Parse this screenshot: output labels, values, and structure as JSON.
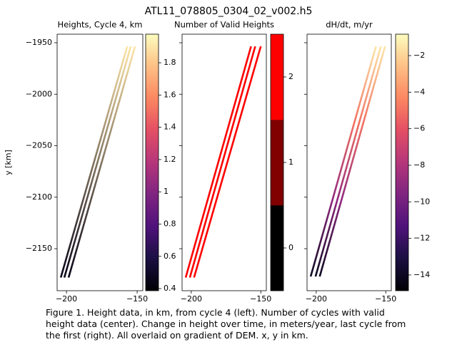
{
  "title": "ATL11_078805_0304_02_v002.h5",
  "caption": [
    "Figure 1. Height data, in km, from cycle 4 (left). Number of cycles with valid",
    "height data (center). Change in height over time, in meters/year, last cycle from",
    "the first (right). All overlaid on gradient of DEM. x, y in km."
  ],
  "chart_data": [
    {
      "type": "line",
      "title": "Heights, Cycle 4, km",
      "y_label": "y [km]",
      "cmap": "magma",
      "xlim": [
        -206.6,
        -146
      ],
      "xticks": [
        {
          "value": -200,
          "label": "−200"
        },
        {
          "value": -150,
          "label": "−150"
        }
      ],
      "ylim": [
        -2190.8,
        -1941.7
      ],
      "ytick_labels": true,
      "yticks": [
        {
          "value": -1950,
          "label": "−1950"
        },
        {
          "value": -2000,
          "label": "−2000"
        },
        {
          "value": -2050,
          "label": "−2050"
        },
        {
          "value": -2100,
          "label": "−2100"
        },
        {
          "value": -2150,
          "label": "−2150"
        }
      ],
      "clim": [
        0.387,
        1.977
      ],
      "cticks": [
        0.4,
        0.6,
        0.8,
        1.0,
        1.2,
        1.4,
        1.6,
        1.8
      ],
      "series": [
        {
          "x": [
            -204,
            -157
          ],
          "values": [
            -2178,
            -1953.5
          ],
          "c": [
            0.45,
            1.9
          ]
        },
        {
          "x": [
            -201.5,
            -154.5
          ],
          "values": [
            -2178,
            -1953.5
          ],
          "c": [
            0.45,
            1.9
          ]
        },
        {
          "x": [
            -198.5,
            -151.5
          ],
          "values": [
            -2178,
            -1953.5
          ],
          "c": [
            0.45,
            1.9
          ]
        }
      ]
    },
    {
      "type": "line",
      "title": "Number of Valid Heights",
      "cmap_colors": [
        "#000000",
        "#800000",
        "#ff0000"
      ],
      "xlim": [
        -206.6,
        -146
      ],
      "xticks": [
        {
          "value": -200,
          "label": "−200"
        },
        {
          "value": -150,
          "label": "−150"
        }
      ],
      "ylim": [
        -2190.8,
        -1941.7
      ],
      "ytick_labels": false,
      "yticks": [
        -1950,
        -2000,
        -2050,
        -2100,
        -2150
      ],
      "clim": [
        -0.5,
        2.5
      ],
      "cticks": [
        0,
        1,
        2
      ],
      "series": [
        {
          "x": [
            -204,
            -157
          ],
          "values": [
            -2178,
            -1953.5
          ],
          "c": [
            2,
            2
          ]
        },
        {
          "x": [
            -201,
            -154
          ],
          "values": [
            -2178,
            -1953.5
          ],
          "c": [
            2,
            2
          ]
        },
        {
          "x": [
            -198,
            -150
          ],
          "values": [
            -2178,
            -1953.5
          ],
          "c": [
            2,
            2
          ]
        }
      ]
    },
    {
      "type": "line",
      "title": "dH/dt, m/yr",
      "cmap": "magma",
      "xlim": [
        -206.6,
        -146
      ],
      "xticks": [
        {
          "value": -200,
          "label": "−200"
        },
        {
          "value": -150,
          "label": "−150"
        }
      ],
      "ylim": [
        -2190.8,
        -1941.7
      ],
      "ytick_labels": false,
      "yticks": [
        -1950,
        -2000,
        -2050,
        -2100,
        -2150
      ],
      "clim": [
        -14.86,
        -0.83
      ],
      "cticks": [
        {
          "value": -14,
          "label": "−14"
        },
        {
          "value": -12,
          "label": "−12"
        },
        {
          "value": -10,
          "label": "−10"
        },
        {
          "value": -8,
          "label": "−8"
        },
        {
          "value": -6,
          "label": "−6"
        },
        {
          "value": -4,
          "label": "−4"
        },
        {
          "value": -2,
          "label": "−2"
        }
      ],
      "series": [
        {
          "x": [
            -204,
            -188.3,
            -172.7,
            -157
          ],
          "values": [
            -2177,
            -2102.5,
            -2028,
            -1953.5
          ],
          "c": [
            -14,
            -9,
            -5,
            -1.5
          ]
        },
        {
          "x": [
            -200.5,
            -184.8,
            -169.2,
            -153.5
          ],
          "values": [
            -2177,
            -2102.5,
            -2028,
            -1953.5
          ],
          "c": [
            -14,
            -9,
            -5,
            -1.5
          ]
        },
        {
          "x": [
            -197.5,
            -181.8,
            -166.2,
            -150.5
          ],
          "values": [
            -2177,
            -2102.5,
            -2028,
            -1953.5
          ],
          "c": [
            -14,
            -9,
            -5,
            -1.5
          ]
        }
      ]
    }
  ]
}
